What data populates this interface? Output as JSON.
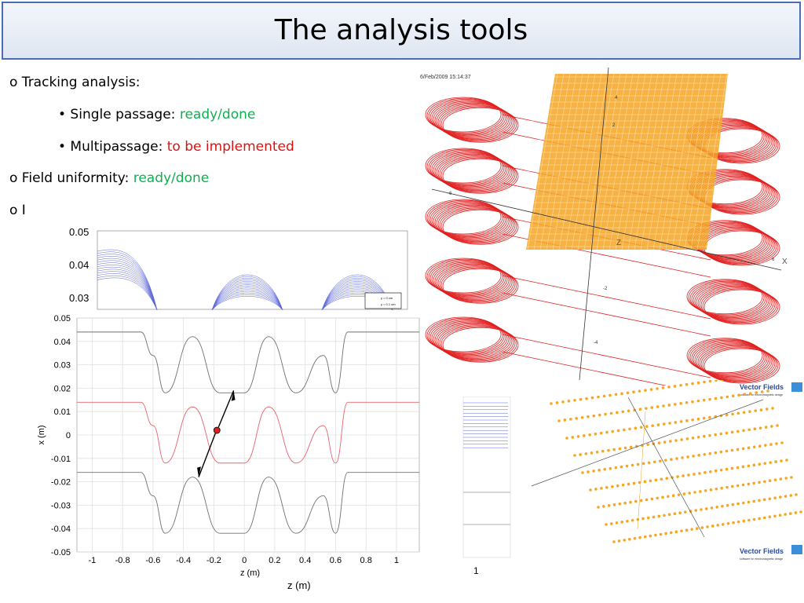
{
  "slide": {
    "title": "The analysis tools"
  },
  "bullets": {
    "tracking": "o Tracking analysis:",
    "single_prefix": "• Single passage: ",
    "single_status": "ready/done",
    "multi_prefix": "• Multipassage: ",
    "multi_status": "to be implemented",
    "field_prefix": "o Field uniformity: ",
    "field_status": "ready/done",
    "cut_item": "o I"
  },
  "colors": {
    "ready": "#10b050",
    "todo": "#e01010",
    "magnet_coils": "#e02020",
    "mesh": "#f5a623",
    "trajectory_red": "#e8646e",
    "trajectory_gray": "#707070",
    "blue_lines": "#5a66d6"
  },
  "magnet_plot": {
    "timestamp": "6/Feb/2009 15:14:37",
    "axis_label_x": "X",
    "axis_label_z": "Z",
    "ticks": [
      "6",
      "-6",
      "2",
      "-2",
      "4",
      "-4"
    ]
  },
  "vector_fields": {
    "brand": "Vector Fields",
    "tagline": "software for electromagnetic design"
  },
  "small_right_plot": {
    "tick_label": "1"
  },
  "bottom": {
    "z_label": "z (m)"
  },
  "legend_top": {
    "entries": [
      "y = 0 cm",
      "y = 0.1 cm"
    ]
  },
  "chart_data": [
    {
      "type": "line",
      "title": "",
      "xlabel": "",
      "ylabel": "",
      "ylim": [
        0.025,
        0.05
      ],
      "yticks": [
        "0.05",
        "0.04",
        "0.03"
      ],
      "series": [
        {
          "name": "y = 0 cm",
          "x": [
            -1,
            -0.5,
            0,
            0.5
          ],
          "values": [
            0.044,
            0.043,
            0.042,
            0.043
          ]
        },
        {
          "name": "y = 0.1 cm",
          "x": [
            -1,
            -0.5,
            0,
            0.5
          ],
          "values": [
            0.04,
            0.039,
            0.038,
            0.039
          ]
        }
      ]
    },
    {
      "type": "line",
      "title": "",
      "xlabel": "z (m)",
      "ylabel": "x (m)",
      "xlim": [
        -1.1,
        1.15
      ],
      "ylim": [
        -0.05,
        0.05
      ],
      "xticks": [
        "-1",
        "-0.8",
        "-0.6",
        "-0.4",
        "-0.2",
        "0",
        "0.2",
        "0.4",
        "0.6",
        "0.8",
        "1"
      ],
      "xtick_values": [
        -1,
        -0.8,
        -0.6,
        -0.4,
        -0.2,
        0,
        0.2,
        0.4,
        0.6,
        0.8,
        1
      ],
      "yticks": [
        "0.05",
        "0.04",
        "0.03",
        "0.02",
        "0.01",
        "0",
        "-0.01",
        "-0.02",
        "-0.03",
        "-0.04",
        "-0.05"
      ],
      "ytick_values": [
        0.05,
        0.04,
        0.03,
        0.02,
        0.01,
        0,
        -0.01,
        -0.02,
        -0.03,
        -0.04,
        -0.05
      ],
      "grid": true,
      "series": [
        {
          "x": [
            -1.1,
            -0.68,
            -0.6,
            -0.52,
            -0.34,
            -0.16,
            0,
            0.16,
            0.34,
            0.52,
            0.6,
            0.68,
            1.15
          ],
          "values": [
            0.044,
            0.044,
            0.034,
            0.018,
            0.042,
            0.018,
            0.018,
            0.042,
            0.018,
            0.034,
            0.018,
            0.044,
            0.044
          ]
        },
        {
          "x": [
            -1.1,
            -0.68,
            -0.6,
            -0.52,
            -0.34,
            -0.16,
            0,
            0.16,
            0.34,
            0.52,
            0.6,
            0.68,
            1.15
          ],
          "values": [
            0.014,
            0.014,
            0.004,
            -0.012,
            0.012,
            -0.012,
            -0.012,
            0.012,
            -0.012,
            0.004,
            -0.012,
            0.014,
            0.014
          ]
        },
        {
          "x": [
            -1.1,
            -0.68,
            -0.6,
            -0.52,
            -0.34,
            -0.16,
            0,
            0.16,
            0.34,
            0.52,
            0.6,
            0.68,
            1.15
          ],
          "values": [
            -0.016,
            -0.016,
            -0.026,
            -0.042,
            -0.018,
            -0.042,
            -0.042,
            -0.018,
            -0.042,
            -0.026,
            -0.042,
            -0.016,
            -0.016
          ]
        }
      ]
    }
  ]
}
